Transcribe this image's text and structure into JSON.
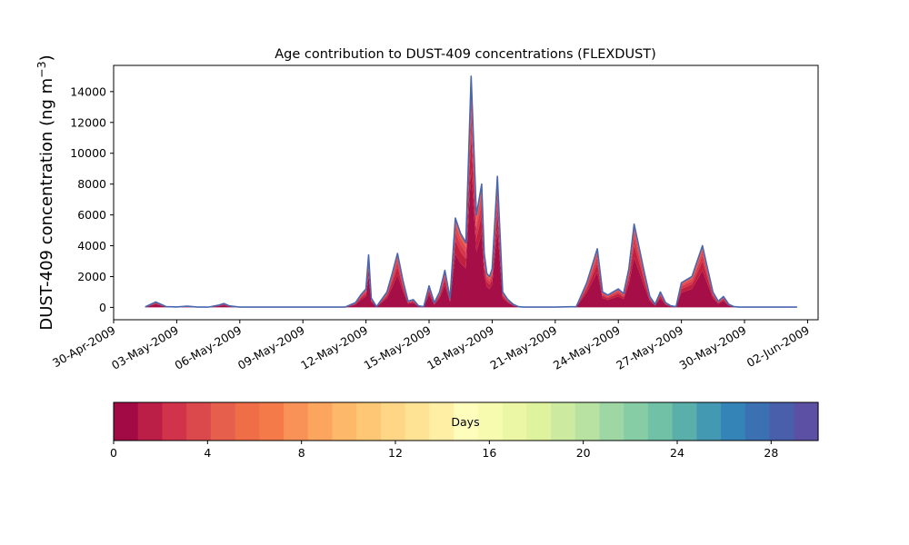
{
  "chart_data": {
    "type": "area",
    "title": "Age contribution to DUST-409 concentrations (FLEXDUST)",
    "ylabel_main": "DUST-409 concentration (ng m",
    "ylabel_sup": "−3",
    "ylabel_close": ")",
    "xlabel": "",
    "ylim": [
      -800,
      15700
    ],
    "yticks": [
      0,
      2000,
      4000,
      6000,
      8000,
      10000,
      12000,
      14000
    ],
    "xlim": [
      "2009-04-30T00:00",
      "2009-06-02T12:00"
    ],
    "xticks": [
      "30-Apr-2009",
      "03-May-2009",
      "06-May-2009",
      "09-May-2009",
      "12-May-2009",
      "15-May-2009",
      "18-May-2009",
      "21-May-2009",
      "24-May-2009",
      "27-May-2009",
      "30-May-2009",
      "02-Jun-2009"
    ],
    "grid": false,
    "total_line_color": "#4a66ad",
    "total_series": {
      "x": [
        "2009-05-01T12:00",
        "2009-05-02T00:00",
        "2009-05-02T06:00",
        "2009-05-02T12:00",
        "2009-05-03T00:00",
        "2009-05-03T12:00",
        "2009-05-04T00:00",
        "2009-05-04T12:00",
        "2009-05-05T00:00",
        "2009-05-05T06:00",
        "2009-05-05T12:00",
        "2009-05-06T00:00",
        "2009-05-06T12:00",
        "2009-05-07T00:00",
        "2009-05-08T00:00",
        "2009-05-09T00:00",
        "2009-05-10T00:00",
        "2009-05-11T00:00",
        "2009-05-11T12:00",
        "2009-05-11T18:00",
        "2009-05-12T00:00",
        "2009-05-12T03:00",
        "2009-05-12T06:00",
        "2009-05-12T12:00",
        "2009-05-13T00:00",
        "2009-05-13T06:00",
        "2009-05-13T12:00",
        "2009-05-13T18:00",
        "2009-05-14T00:00",
        "2009-05-14T06:00",
        "2009-05-14T12:00",
        "2009-05-14T18:00",
        "2009-05-15T00:00",
        "2009-05-15T06:00",
        "2009-05-15T12:00",
        "2009-05-15T18:00",
        "2009-05-16T00:00",
        "2009-05-16T06:00",
        "2009-05-16T12:00",
        "2009-05-16T18:00",
        "2009-05-17T00:00",
        "2009-05-17T06:00",
        "2009-05-17T12:00",
        "2009-05-17T15:00",
        "2009-05-17T18:00",
        "2009-05-17T21:00",
        "2009-05-18T00:00",
        "2009-05-18T06:00",
        "2009-05-18T12:00",
        "2009-05-18T18:00",
        "2009-05-19T00:00",
        "2009-05-19T06:00",
        "2009-05-19T12:00",
        "2009-05-19T18:00",
        "2009-05-20T00:00",
        "2009-05-20T12:00",
        "2009-05-21T00:00",
        "2009-05-22T00:00",
        "2009-05-22T12:00",
        "2009-05-23T00:00",
        "2009-05-23T06:00",
        "2009-05-23T12:00",
        "2009-05-23T18:00",
        "2009-05-24T00:00",
        "2009-05-24T06:00",
        "2009-05-24T12:00",
        "2009-05-24T18:00",
        "2009-05-25T00:00",
        "2009-05-25T06:00",
        "2009-05-25T12:00",
        "2009-05-25T18:00",
        "2009-05-26T00:00",
        "2009-05-26T06:00",
        "2009-05-26T12:00",
        "2009-05-26T18:00",
        "2009-05-27T00:00",
        "2009-05-27T12:00",
        "2009-05-28T00:00",
        "2009-05-28T06:00",
        "2009-05-28T12:00",
        "2009-05-28T18:00",
        "2009-05-29T00:00",
        "2009-05-29T06:00",
        "2009-05-29T12:00",
        "2009-05-29T18:00",
        "2009-05-30T00:00",
        "2009-05-30T12:00",
        "2009-05-31T00:00",
        "2009-06-01T00:00",
        "2009-06-01T12:00"
      ],
      "values": [
        30,
        350,
        200,
        50,
        30,
        80,
        20,
        20,
        150,
        250,
        100,
        20,
        20,
        20,
        20,
        20,
        20,
        20,
        300,
        800,
        1200,
        3400,
        600,
        50,
        1000,
        2200,
        3500,
        1800,
        400,
        500,
        100,
        50,
        1400,
        300,
        1000,
        2400,
        600,
        5800,
        4800,
        4200,
        15000,
        6000,
        8000,
        3500,
        2200,
        2000,
        2500,
        8500,
        1000,
        500,
        200,
        50,
        20,
        20,
        20,
        20,
        20,
        50,
        1600,
        3800,
        1000,
        800,
        1000,
        1200,
        900,
        2500,
        5400,
        3800,
        2200,
        700,
        200,
        1000,
        300,
        100,
        50,
        1600,
        2000,
        4000,
        2500,
        1000,
        400,
        700,
        200,
        50,
        20,
        20,
        20,
        20,
        20,
        20
      ]
    },
    "age_layers": [
      {
        "age_days": "0-1",
        "fraction": 0.6,
        "color": "#a50e46"
      },
      {
        "age_days": "1-2",
        "fraction": 0.15,
        "color": "#c0203e"
      },
      {
        "age_days": "2-3",
        "fraction": 0.1,
        "color": "#d6364b"
      },
      {
        "age_days": "3-4",
        "fraction": 0.08,
        "color": "#e0484d"
      },
      {
        "age_days": "4-6",
        "fraction": 0.07,
        "color": "#ea5e4a"
      }
    ],
    "colorbar": {
      "label": "Days",
      "range": [
        0,
        30
      ],
      "ticks": [
        0,
        4,
        8,
        12,
        16,
        20,
        24,
        28
      ],
      "colors": [
        "#a10a45",
        "#bb1f47",
        "#d1334a",
        "#dc494d",
        "#e65f4d",
        "#ef6d47",
        "#f57a4a",
        "#f99256",
        "#fba55f",
        "#fdb869",
        "#fdc776",
        "#fed685",
        "#fee395",
        "#feefa4",
        "#fefdbb",
        "#f6fbb0",
        "#ebf7a5",
        "#dff29e",
        "#cceba0",
        "#b7e2a2",
        "#9fd7a4",
        "#86cca4",
        "#70c1a5",
        "#5aafaa",
        "#4499b2",
        "#3484b8",
        "#3b70b2",
        "#4a5fac",
        "#5b50a3"
      ]
    }
  }
}
